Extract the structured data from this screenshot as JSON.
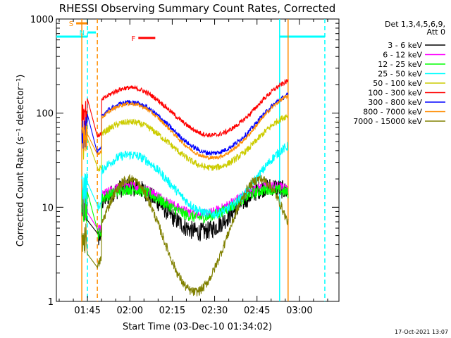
{
  "chart_data": {
    "type": "line",
    "title": "RHESSI Observing Summary Count Rates, Corrected",
    "xlabel": "Start Time (03-Dec-10 01:34:02)",
    "ylabel": "Corrected Count Rate (s⁻¹ detector⁻¹)",
    "x_unit": "minutes after 01:34:02",
    "xlim": [
      0,
      100
    ],
    "ylim": [
      1,
      1000
    ],
    "yscale": "log",
    "x_ticks": [
      {
        "label": "01:45",
        "value": 11
      },
      {
        "label": "02:00",
        "value": 26
      },
      {
        "label": "02:15",
        "value": 41
      },
      {
        "label": "02:30",
        "value": 56
      },
      {
        "label": "02:45",
        "value": 71
      },
      {
        "label": "03:00",
        "value": 86
      }
    ],
    "y_ticks": [
      {
        "label": "1",
        "value": 1
      },
      {
        "label": "10",
        "value": 10
      },
      {
        "label": "100",
        "value": 100
      },
      {
        "label": "1000",
        "value": 1000
      }
    ],
    "legend_header": [
      "Det 1,3,4,5,6,9,",
      "Att 0"
    ],
    "legend_placement": "right",
    "series": [
      {
        "name": "3 - 6 keV",
        "color": "#000000",
        "shape": "b",
        "base": 9.5,
        "amp": 0.4,
        "noise": 0.1
      },
      {
        "name": "6 - 12 keV",
        "color": "#ff00ff",
        "shape": "b",
        "base": 12,
        "amp": 0.25,
        "noise": 0.05
      },
      {
        "name": "12 - 25 keV",
        "color": "#00ff00",
        "shape": "b",
        "base": 11,
        "amp": 0.25,
        "noise": 0.06
      },
      {
        "name": "25 - 50 keV",
        "color": "#00ffff",
        "shape": "a",
        "base": 17.5,
        "amp": 0.35,
        "noise": 0.05
      },
      {
        "name": "50 - 100 keV",
        "color": "#cccc00",
        "shape": "a",
        "base": 46,
        "amp": 0.27,
        "noise": 0.035
      },
      {
        "name": "100 - 300 keV",
        "color": "#ff0000",
        "shape": "a",
        "base": 104,
        "amp": 0.28,
        "noise": 0.025
      },
      {
        "name": "300 - 800 keV",
        "color": "#0000ff",
        "shape": "a",
        "base": 70,
        "amp": 0.3,
        "noise": 0.025
      },
      {
        "name": "800 - 7000 keV",
        "color": "#ff8c00",
        "shape": "a",
        "base": 65,
        "amp": 0.32,
        "noise": 0.02
      },
      {
        "name": "7000 - 15000 keV",
        "color": "#808000",
        "shape": "c",
        "base": 5,
        "amp": 0.6,
        "noise": 0.05
      }
    ],
    "markers": [
      {
        "label": "S",
        "color": "#ff8c00",
        "x": [
          7,
          11
        ],
        "y": 900
      },
      {
        "label": "N",
        "color": "#00ffff",
        "x": [
          11,
          14
        ],
        "y": 720
      },
      {
        "label": "F",
        "color": "#ff0000",
        "x": [
          29,
          35
        ],
        "y": 630
      }
    ],
    "vertical_lines": [
      {
        "color": "#ff8c00",
        "x": 9,
        "style": "solid"
      },
      {
        "color": "#00ffff",
        "x": 11,
        "style": "dashed"
      },
      {
        "color": "#ff8c00",
        "x": 14.5,
        "style": "dashed"
      },
      {
        "color": "#00ffff",
        "x": 79,
        "style": "solid"
      },
      {
        "color": "#ff8c00",
        "x": 82,
        "style": "solid"
      },
      {
        "color": "#00ffff",
        "x": 95,
        "style": "dashed"
      }
    ],
    "eclipse_bars": [
      {
        "color": "#00ffff",
        "x": [
          0,
          11
        ],
        "y": 650
      },
      {
        "color": "#00ffff",
        "x": [
          79,
          95
        ],
        "y": 650
      }
    ],
    "data_x_range": [
      9,
      82
    ]
  },
  "footer": {
    "timestamp": "17-Oct-2021 13:07"
  }
}
